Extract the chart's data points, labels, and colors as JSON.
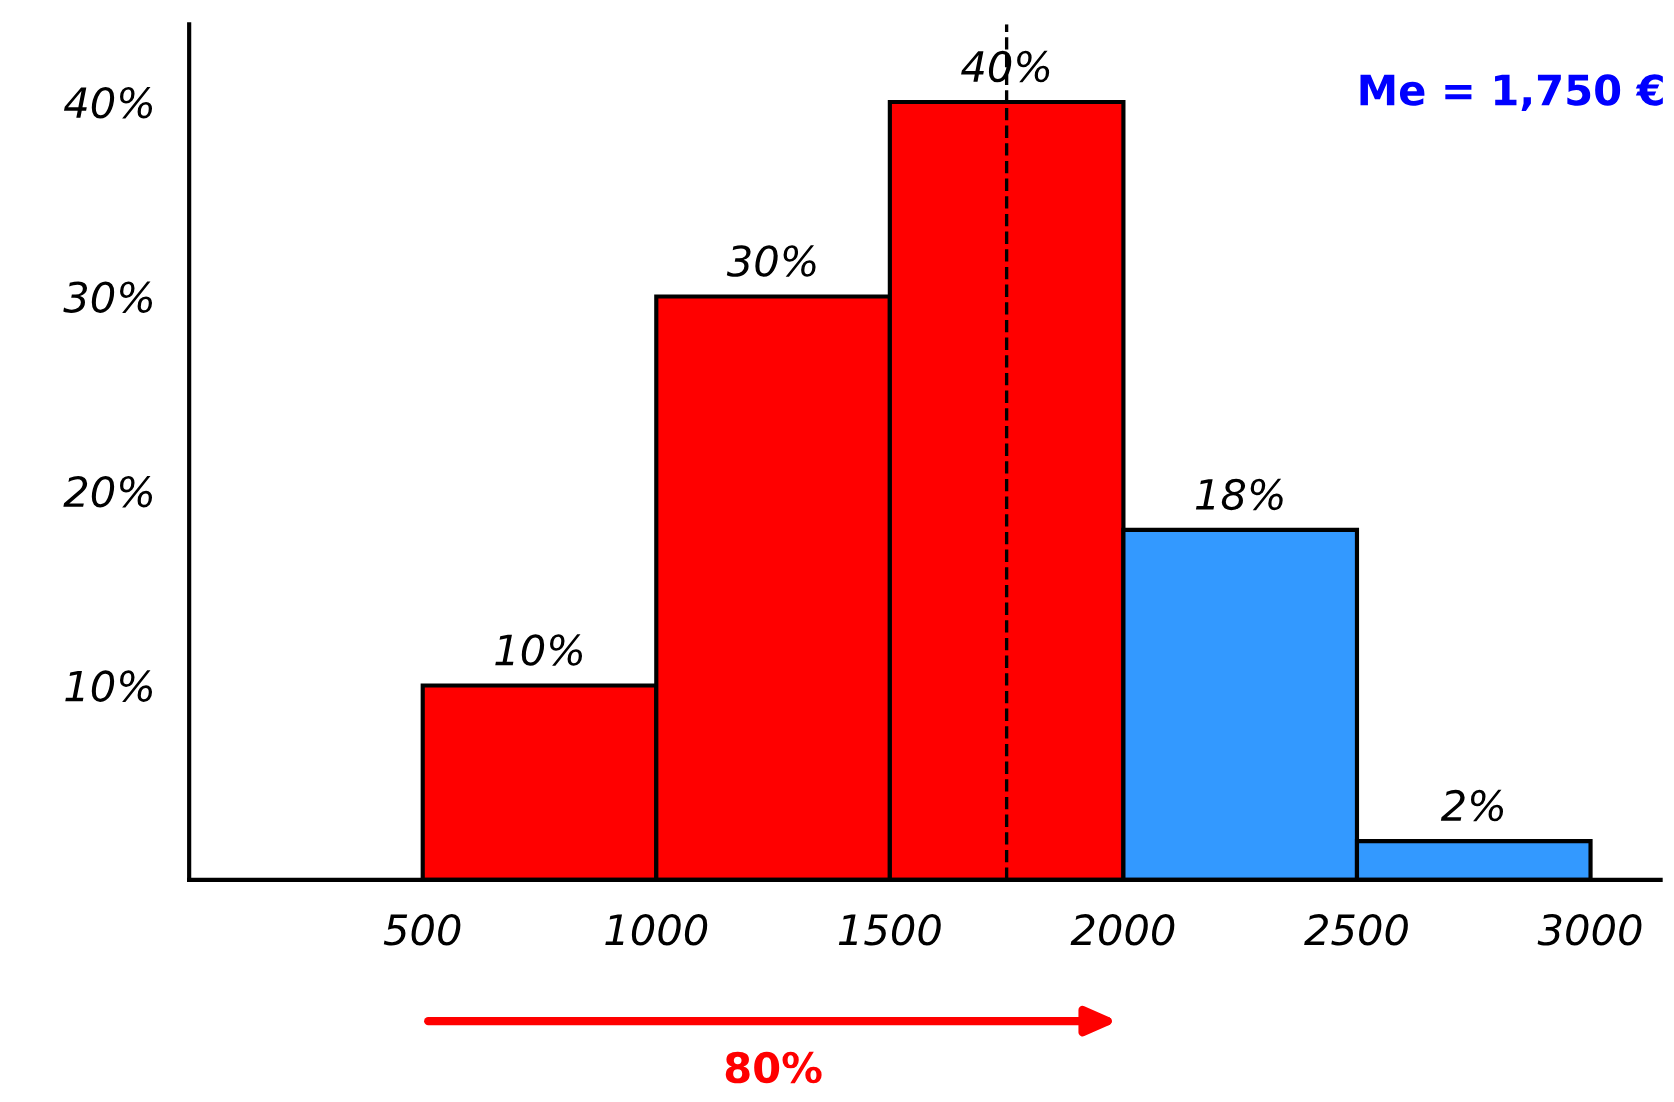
{
  "chart_data": {
    "type": "histogram",
    "bins": [
      500,
      1000,
      1500,
      2000,
      2500,
      3000
    ],
    "values": [
      10,
      30,
      40,
      18,
      2
    ],
    "value_labels": [
      "10%",
      "30%",
      "40%",
      "18%",
      "2%"
    ],
    "colors": [
      "#ff0000",
      "#ff0000",
      "#ff0000",
      "#3399ff",
      "#3399ff"
    ],
    "xlim": [
      0,
      3150
    ],
    "xticks": [
      500,
      1000,
      1500,
      2000,
      2500,
      3000
    ],
    "ylim": [
      0,
      44
    ],
    "yticks": [
      {
        "value": 10,
        "label": "10%"
      },
      {
        "value": 20,
        "label": "20%"
      },
      {
        "value": 30,
        "label": "30%"
      },
      {
        "value": 40,
        "label": "40%"
      }
    ],
    "ref_lines": [
      {
        "axis": "x",
        "value": 1750,
        "color": "#000000",
        "line_style": "dashed"
      }
    ],
    "annotations": [
      "Me = 1,750 €",
      "80%"
    ],
    "grid": false
  }
}
